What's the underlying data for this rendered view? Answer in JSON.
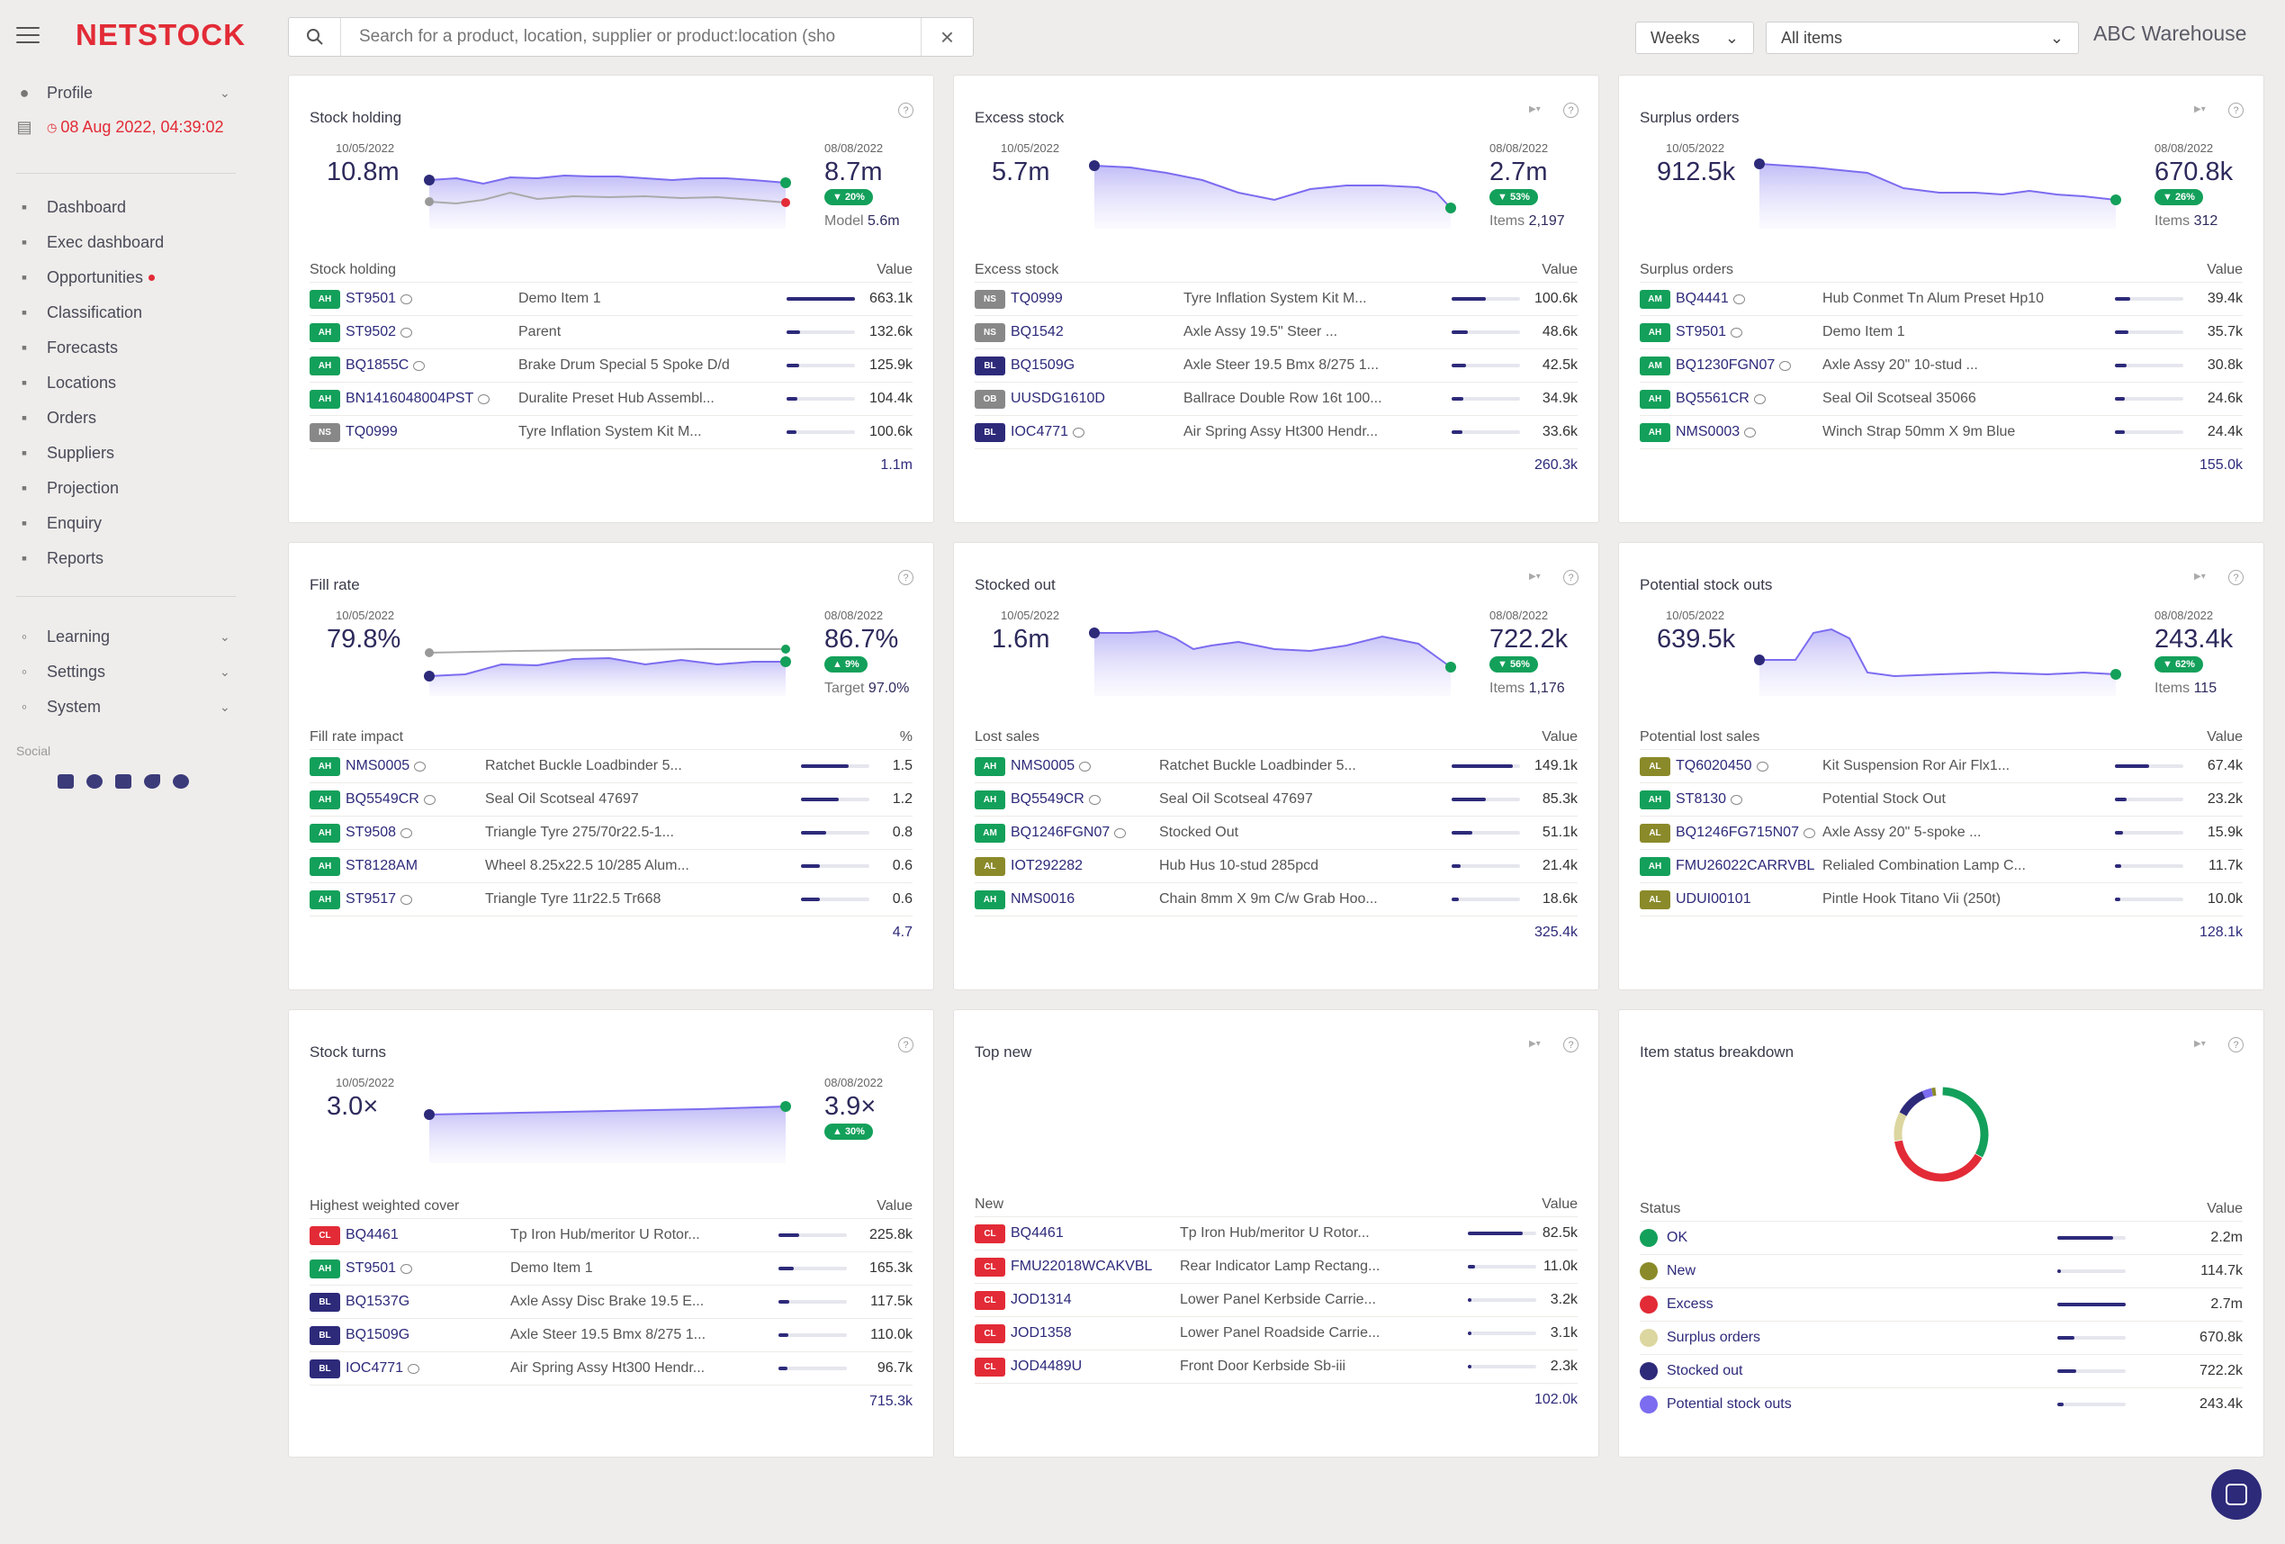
{
  "brand": {
    "logo": "NETSTOCK"
  },
  "sidebar": {
    "profile": "Profile",
    "datetime": "08 Aug 2022, 04:39:02",
    "items": [
      {
        "label": "Dashboard",
        "icon": "dashboard-icon"
      },
      {
        "label": "Exec dashboard",
        "icon": "exec-dashboard-icon"
      },
      {
        "label": "Opportunities",
        "icon": "opportunities-icon"
      },
      {
        "label": "Classification",
        "icon": "classification-icon"
      },
      {
        "label": "Forecasts",
        "icon": "forecasts-icon"
      },
      {
        "label": "Locations",
        "icon": "locations-icon"
      },
      {
        "label": "Orders",
        "icon": "orders-icon"
      },
      {
        "label": "Suppliers",
        "icon": "suppliers-icon"
      },
      {
        "label": "Projection",
        "icon": "projection-icon"
      },
      {
        "label": "Enquiry",
        "icon": "enquiry-icon"
      },
      {
        "label": "Reports",
        "icon": "reports-icon"
      }
    ],
    "groups": [
      {
        "label": "Learning",
        "icon": "bulb-icon"
      },
      {
        "label": "Settings",
        "icon": "gear-icon"
      },
      {
        "label": "System",
        "icon": "system-icon"
      }
    ],
    "social_label": "Social",
    "social_icons": [
      "youtube-icon",
      "wordpress-icon",
      "linkedin-icon",
      "twitter-icon",
      "facebook-icon"
    ]
  },
  "topbar": {
    "search_placeholder": "Search for a product, location, supplier or product:location (sho",
    "period": "Weeks",
    "filter": "All items",
    "warehouse": "ABC Warehouse"
  },
  "colors": {
    "accent": "#2d2a7a",
    "brand": "#e22b36",
    "positive": "#13a05a",
    "tag_AH": "#13a05a",
    "tag_AM": "#13a05a",
    "tag_NS": "#888888",
    "tag_BL": "#2d2a7a",
    "tag_OB": "#888888",
    "tag_AL": "#8a8a2a",
    "tag_CL": "#e22b36"
  },
  "cards": [
    {
      "title": "Stock holding",
      "start_date": "10/05/2022",
      "start_value": "10.8m",
      "end_date": "08/08/2022",
      "end_value": "8.7m",
      "badge": "▼ 20%",
      "sub_label": "Model",
      "sub_value": "5.6m",
      "table_label": "Stock holding",
      "value_label": "Value",
      "rows": [
        {
          "tag": "AH",
          "code": "ST9501",
          "desc": "Demo Item 1",
          "value": "663.1k",
          "ratio": 1.0,
          "comment": true
        },
        {
          "tag": "AH",
          "code": "ST9502",
          "desc": "Parent",
          "value": "132.6k",
          "ratio": 0.2,
          "comment": true
        },
        {
          "tag": "AH",
          "code": "BQ1855C",
          "desc": "Brake Drum Special 5 Spoke D/d",
          "value": "125.9k",
          "ratio": 0.19,
          "comment": true
        },
        {
          "tag": "AH",
          "code": "BN1416048004PST",
          "desc": "Duralite Preset Hub Assembl...",
          "value": "104.4k",
          "ratio": 0.16,
          "comment": true
        },
        {
          "tag": "NS",
          "code": "TQ0999",
          "desc": "Tyre Inflation System Kit M...",
          "value": "100.6k",
          "ratio": 0.15,
          "comment": false
        }
      ],
      "total": "1.1m"
    },
    {
      "title": "Excess stock",
      "start_date": "10/05/2022",
      "start_value": "5.7m",
      "end_date": "08/08/2022",
      "end_value": "2.7m",
      "badge": "▼ 53%",
      "sub_label": "Items",
      "sub_value": "2,197",
      "table_label": "Excess stock",
      "value_label": "Value",
      "rows": [
        {
          "tag": "NS",
          "code": "TQ0999",
          "desc": "Tyre Inflation System Kit M...",
          "value": "100.6k",
          "ratio": 0.5,
          "comment": false
        },
        {
          "tag": "NS",
          "code": "BQ1542",
          "desc": "Axle Assy 19.5\" Steer ...",
          "value": "48.6k",
          "ratio": 0.24,
          "comment": false
        },
        {
          "tag": "BL",
          "code": "BQ1509G",
          "desc": "Axle Steer 19.5 Bmx 8/275 1...",
          "value": "42.5k",
          "ratio": 0.21,
          "comment": false
        },
        {
          "tag": "OB",
          "code": "UUSDG1610D",
          "desc": "Ballrace Double Row 16t 100...",
          "value": "34.9k",
          "ratio": 0.17,
          "comment": false
        },
        {
          "tag": "BL",
          "code": "IOC4771",
          "desc": "Air Spring Assy Ht300 Hendr...",
          "value": "33.6k",
          "ratio": 0.16,
          "comment": true
        }
      ],
      "total": "260.3k"
    },
    {
      "title": "Surplus orders",
      "start_date": "10/05/2022",
      "start_value": "912.5k",
      "end_date": "08/08/2022",
      "end_value": "670.8k",
      "badge": "▼ 26%",
      "sub_label": "Items",
      "sub_value": "312",
      "table_label": "Surplus orders",
      "value_label": "Value",
      "rows": [
        {
          "tag": "AM",
          "code": "BQ4441",
          "desc": "Hub Conmet Tn Alum Preset Hp10",
          "value": "39.4k",
          "ratio": 0.22,
          "comment": true
        },
        {
          "tag": "AH",
          "code": "ST9501",
          "desc": "Demo Item 1",
          "value": "35.7k",
          "ratio": 0.2,
          "comment": true
        },
        {
          "tag": "AM",
          "code": "BQ1230FGN07",
          "desc": "Axle Assy 20\" 10-stud ...",
          "value": "30.8k",
          "ratio": 0.17,
          "comment": true
        },
        {
          "tag": "AH",
          "code": "BQ5561CR",
          "desc": "Seal Oil Scotseal 35066",
          "value": "24.6k",
          "ratio": 0.14,
          "comment": true
        },
        {
          "tag": "AH",
          "code": "NMS0003",
          "desc": "Winch Strap 50mm X 9m Blue",
          "value": "24.4k",
          "ratio": 0.14,
          "comment": true
        }
      ],
      "total": "155.0k"
    },
    {
      "title": "Fill rate",
      "start_date": "10/05/2022",
      "start_value": "79.8%",
      "end_date": "08/08/2022",
      "end_value": "86.7%",
      "badge": "▲ 9%",
      "sub_label": "Target",
      "sub_value": "97.0%",
      "table_label": "Fill rate impact",
      "value_label": "%",
      "rows": [
        {
          "tag": "AH",
          "code": "NMS0005",
          "desc": "Ratchet Buckle Loadbinder 5...",
          "value": "1.5",
          "ratio": 0.7,
          "comment": true
        },
        {
          "tag": "AH",
          "code": "BQ5549CR",
          "desc": "Seal Oil Scotseal 47697",
          "value": "1.2",
          "ratio": 0.55,
          "comment": true
        },
        {
          "tag": "AH",
          "code": "ST9508",
          "desc": "Triangle Tyre 275/70r22.5-1...",
          "value": "0.8",
          "ratio": 0.37,
          "comment": true
        },
        {
          "tag": "AH",
          "code": "ST8128AM",
          "desc": "Wheel 8.25x22.5 10/285 Alum...",
          "value": "0.6",
          "ratio": 0.28,
          "comment": false
        },
        {
          "tag": "AH",
          "code": "ST9517",
          "desc": "Triangle Tyre 11r22.5 Tr668",
          "value": "0.6",
          "ratio": 0.28,
          "comment": true
        }
      ],
      "total": "4.7"
    },
    {
      "title": "Stocked out",
      "start_date": "10/05/2022",
      "start_value": "1.6m",
      "end_date": "08/08/2022",
      "end_value": "722.2k",
      "badge": "▼ 56%",
      "sub_label": "Items",
      "sub_value": "1,176",
      "table_label": "Lost sales",
      "value_label": "Value",
      "rows": [
        {
          "tag": "AH",
          "code": "NMS0005",
          "desc": "Ratchet Buckle Loadbinder 5...",
          "value": "149.1k",
          "ratio": 0.9,
          "comment": true
        },
        {
          "tag": "AH",
          "code": "BQ5549CR",
          "desc": "Seal Oil Scotseal 47697",
          "value": "85.3k",
          "ratio": 0.5,
          "comment": true
        },
        {
          "tag": "AM",
          "code": "BQ1246FGN07",
          "desc": "Stocked Out",
          "value": "51.1k",
          "ratio": 0.3,
          "comment": true
        },
        {
          "tag": "AL",
          "code": "IOT292282",
          "desc": "Hub Hus 10-stud 285pcd",
          "value": "21.4k",
          "ratio": 0.13,
          "comment": false
        },
        {
          "tag": "AH",
          "code": "NMS0016",
          "desc": "Chain 8mm X 9m C/w Grab Hoo...",
          "value": "18.6k",
          "ratio": 0.11,
          "comment": false
        }
      ],
      "total": "325.4k"
    },
    {
      "title": "Potential stock outs",
      "start_date": "10/05/2022",
      "start_value": "639.5k",
      "end_date": "08/08/2022",
      "end_value": "243.4k",
      "badge": "▼ 62%",
      "sub_label": "Items",
      "sub_value": "115",
      "table_label": "Potential lost sales",
      "value_label": "Value",
      "rows": [
        {
          "tag": "AL",
          "code": "TQ6020450",
          "desc": "Kit Suspension Ror Air Flx1...",
          "value": "67.4k",
          "ratio": 0.5,
          "comment": true
        },
        {
          "tag": "AH",
          "code": "ST8130",
          "desc": "Potential Stock Out",
          "value": "23.2k",
          "ratio": 0.17,
          "comment": true
        },
        {
          "tag": "AL",
          "code": "BQ1246FG715N07",
          "desc": "Axle Assy 20\" 5-spoke ...",
          "value": "15.9k",
          "ratio": 0.12,
          "comment": true
        },
        {
          "tag": "AH",
          "code": "FMU26022CARRVBL",
          "desc": "Relialed Combination Lamp C...",
          "value": "11.7k",
          "ratio": 0.09,
          "comment": false
        },
        {
          "tag": "AL",
          "code": "UDUI00101",
          "desc": "Pintle Hook Titano Vii (250t)",
          "value": "10.0k",
          "ratio": 0.08,
          "comment": false
        }
      ],
      "total": "128.1k"
    },
    {
      "title": "Stock turns",
      "start_date": "10/05/2022",
      "start_value": "3.0×",
      "end_date": "08/08/2022",
      "end_value": "3.9×",
      "badge": "▲ 30%",
      "sub_label": "",
      "sub_value": "",
      "table_label": "Highest weighted cover",
      "value_label": "Value",
      "rows": [
        {
          "tag": "CL",
          "code": "BQ4461",
          "desc": "Tp Iron Hub/meritor U Rotor...",
          "value": "225.8k",
          "ratio": 0.3,
          "comment": false
        },
        {
          "tag": "AH",
          "code": "ST9501",
          "desc": "Demo Item 1",
          "value": "165.3k",
          "ratio": 0.22,
          "comment": true
        },
        {
          "tag": "BL",
          "code": "BQ1537G",
          "desc": "Axle Assy Disc Brake 19.5 E...",
          "value": "117.5k",
          "ratio": 0.16,
          "comment": false
        },
        {
          "tag": "BL",
          "code": "BQ1509G",
          "desc": "Axle Steer 19.5 Bmx 8/275 1...",
          "value": "110.0k",
          "ratio": 0.15,
          "comment": false
        },
        {
          "tag": "BL",
          "code": "IOC4771",
          "desc": "Air Spring Assy Ht300 Hendr...",
          "value": "96.7k",
          "ratio": 0.13,
          "comment": true
        }
      ],
      "total": "715.3k"
    },
    {
      "title": "Top new",
      "table_label": "New",
      "value_label": "Value",
      "rows": [
        {
          "tag": "CL",
          "code": "BQ4461",
          "desc": "Tp Iron Hub/meritor U Rotor...",
          "value": "82.5k",
          "ratio": 0.8,
          "comment": false
        },
        {
          "tag": "CL",
          "code": "FMU22018WCAKVBL",
          "desc": "Rear Indicator Lamp Rectang...",
          "value": "11.0k",
          "ratio": 0.11,
          "comment": false
        },
        {
          "tag": "CL",
          "code": "JOD1314",
          "desc": "Lower Panel Kerbside Carrie...",
          "value": "3.2k",
          "ratio": 0.03,
          "comment": false
        },
        {
          "tag": "CL",
          "code": "JOD1358",
          "desc": "Lower Panel Roadside Carrie...",
          "value": "3.1k",
          "ratio": 0.03,
          "comment": false
        },
        {
          "tag": "CL",
          "code": "JOD4489U",
          "desc": "Front Door Kerbside Sb-iii",
          "value": "2.3k",
          "ratio": 0.02,
          "comment": false
        }
      ],
      "total": "102.0k"
    },
    {
      "title": "Item status breakdown",
      "table_label": "Status",
      "value_label": "Value",
      "statuses": [
        {
          "label": "OK",
          "value": "2.2m",
          "ratio": 0.81,
          "color": "#13a05a"
        },
        {
          "label": "New",
          "value": "114.7k",
          "ratio": 0.04,
          "color": "#8a8a2a"
        },
        {
          "label": "Excess",
          "value": "2.7m",
          "ratio": 1.0,
          "color": "#e22b36"
        },
        {
          "label": "Surplus orders",
          "value": "670.8k",
          "ratio": 0.25,
          "color": "#dcd6a0"
        },
        {
          "label": "Stocked out",
          "value": "722.2k",
          "ratio": 0.27,
          "color": "#2d2a7a"
        },
        {
          "label": "Potential stock outs",
          "value": "243.4k",
          "ratio": 0.09,
          "color": "#7c6cf0"
        }
      ]
    }
  ]
}
